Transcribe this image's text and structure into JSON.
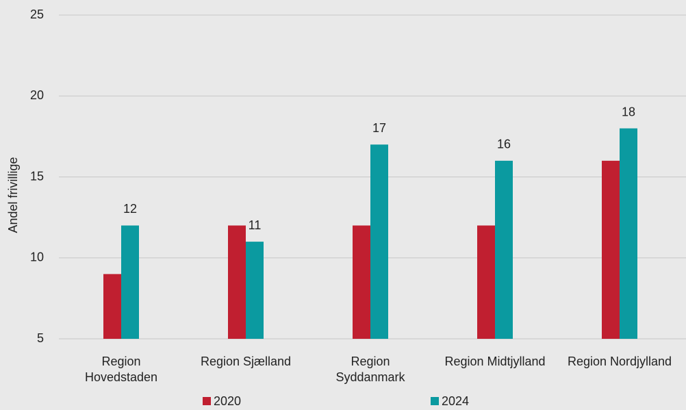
{
  "chart_data": {
    "type": "bar",
    "y_label": "Andel frivillige",
    "categories": [
      "Region\nHovedstaden",
      "Region Sjælland",
      "Region\nSyddanmark",
      "Region Midtjylland",
      "Region Nordjylland"
    ],
    "series": [
      {
        "name": "2020",
        "color": "#c01f30",
        "values": [
          9,
          12,
          12,
          12,
          16
        ],
        "show_labels": false
      },
      {
        "name": "2024",
        "color": "#0b9aa0",
        "values": [
          12,
          11,
          17,
          16,
          18
        ],
        "show_labels": true
      }
    ],
    "ylim": [
      5,
      25
    ],
    "yticks": [
      5,
      10,
      15,
      20,
      25
    ],
    "grid": true,
    "legend": "bottom"
  }
}
